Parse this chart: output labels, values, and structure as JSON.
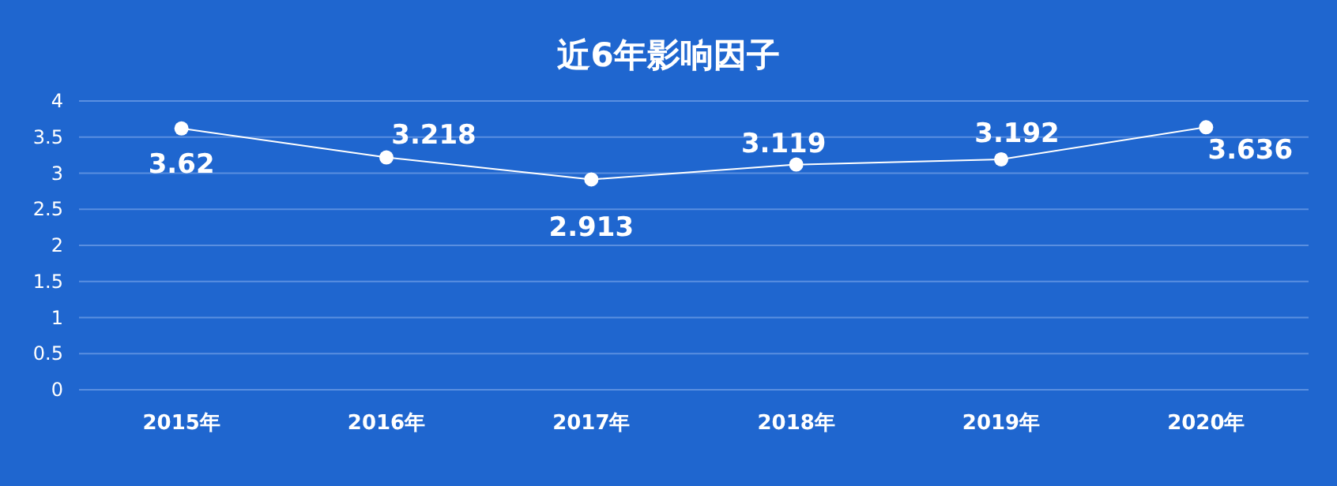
{
  "chart_data": {
    "type": "line",
    "title": "近6年影响因子",
    "categories": [
      "2015年",
      "2016年",
      "2017年",
      "2018年",
      "2019年",
      "2020年"
    ],
    "series": [
      {
        "color": "#ffffff",
        "values": [
          3.62,
          3.218,
          2.913,
          3.119,
          3.192,
          3.636
        ]
      }
    ],
    "ylim": [
      0,
      4
    ],
    "yticks": [
      0,
      0.5,
      1,
      1.5,
      2,
      2.5,
      3,
      3.5,
      4
    ],
    "grid": "y",
    "marker": "circle",
    "data_labels": true
  }
}
